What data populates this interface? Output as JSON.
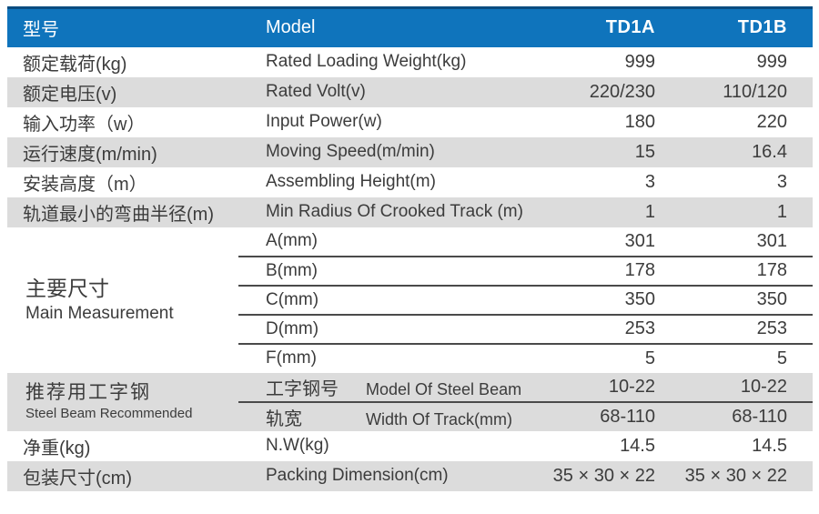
{
  "header": {
    "col_zh": "型号",
    "col_en": "Model",
    "model_a": "TD1A",
    "model_b": "TD1B"
  },
  "rows": [
    {
      "zh": "额定载荷(kg)",
      "en": "Rated Loading Weight(kg)",
      "a": "999",
      "b": "999"
    },
    {
      "zh": "额定电压(v)",
      "en": "Rated Volt(v)",
      "a": "220/230",
      "b": "110/120"
    },
    {
      "zh": "输入功率（w）",
      "en": "Input Power(w)",
      "a": "180",
      "b": "220"
    },
    {
      "zh": "运行速度(m/min)",
      "en": "Moving Speed(m/min)",
      "a": "15",
      "b": "16.4"
    },
    {
      "zh": "安装高度（m）",
      "en": "Assembling Height(m)",
      "a": "3",
      "b": "3"
    },
    {
      "zh": "轨道最小的弯曲半径(m)",
      "en": "Min Radius Of Crooked Track (m)",
      "a": "1",
      "b": "1"
    }
  ],
  "main_measurement": {
    "zh": "主要尺寸",
    "en": "Main Measurement",
    "sub_rows": [
      {
        "label": "A(mm)",
        "a": "301",
        "b": "301"
      },
      {
        "label": "B(mm)",
        "a": "178",
        "b": "178"
      },
      {
        "label": "C(mm)",
        "a": "350",
        "b": "350"
      },
      {
        "label": "D(mm)",
        "a": "253",
        "b": "253"
      },
      {
        "label": "F(mm)",
        "a": "5",
        "b": "5"
      }
    ]
  },
  "steel_beam": {
    "zh": "推荐用工字钢",
    "en": "Steel Beam Recommended",
    "sub_rows": [
      {
        "zh": "工字钢号",
        "en": "Model Of Steel Beam",
        "a": "10-22",
        "b": "10-22"
      },
      {
        "zh": "轨宽",
        "en": "Width Of Track(mm)",
        "a": "68-110",
        "b": "68-110"
      }
    ]
  },
  "footer_rows": [
    {
      "zh": "净重(kg)",
      "en": "N.W(kg)",
      "a": "14.5",
      "b": "14.5"
    },
    {
      "zh": "包装尺寸(cm)",
      "en": "Packing Dimension(cm)",
      "a": "35 × 30 × 22",
      "b": "35 × 30 × 22"
    }
  ],
  "colors": {
    "header-bg": "#0f74bc",
    "header-top-line": "#0a4c80",
    "header-text": "#ffffff",
    "row-alt-bg": "#dcdcdc",
    "row-bg": "#ffffff",
    "text": "#3c3c3c",
    "divider": "#4a4a4a"
  }
}
